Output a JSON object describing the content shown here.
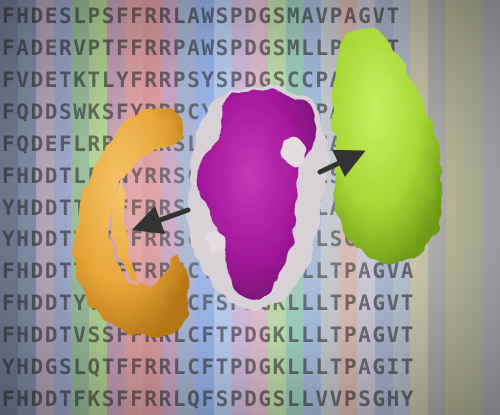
{
  "sequence_rows": [
    "FHDESLPSFFRRLAWSPDGSMAVPAGVT",
    "FADERVPTFFRRPAWSPDGSMLLPAGYT",
    "FVDETKTLYFRRPSYSPDGSCCPAGTY",
    "FQDDSWKSFYRRPCYSPDGSRRPAGNL",
    "FQDEFLRRNFRRSLFSPDGSAFNAGGLL",
    "FHDDTLFQNYRRSCFSPDGSLLLSGCTC",
    "YHDDTTFTFFRRSCYSPDGSLLLAGSMA",
    "YHDDTTFTFFRRSCYSPDGSLLLSGVAV",
    "FHDDTTFTFFRRSCYSPDGKLLLTPAGVA",
    "FHDDTYTAFFRRLCFSPDGKLLLTPAGVT",
    "FHDDTVSSFFRRLCFTPDGKLLLTPAGVT",
    "YHDGSLQTFFRRLCFTPDGKLLLTPAGIT",
    "FHDDTFKSFFRRLQFSPDGSLLVVPSGHY"
  ],
  "colors": {
    "gold_ring": "#e8a63a",
    "purple_core": "#a2179a",
    "white_patches": "#dcd6da",
    "green_blob": "#a6d634",
    "arrow": "#333333"
  },
  "column_colors": [
    "#7f8aa6",
    "#8d9bb8",
    "#c7b2c9",
    "#a4b0d4",
    "#9fc3a0",
    "#b7d79a",
    "#c9a3b8",
    "#e0a2a6",
    "#d99aa0",
    "#c7a2c0",
    "#a5b0cf",
    "#94aee3",
    "#b0c5e6",
    "#c9b6d6",
    "#d7b7c7",
    "#b9d6a6",
    "#99c7b8",
    "#a2b6d6",
    "#c1c3cc",
    "#d6b6b0",
    "#c6c6d6",
    "#aab6cc",
    "#b8c2d0",
    "#cfcab0",
    "#b5b5b5",
    "#c0c0a0",
    "#bfc0a5",
    "#b8b8c0"
  ]
}
